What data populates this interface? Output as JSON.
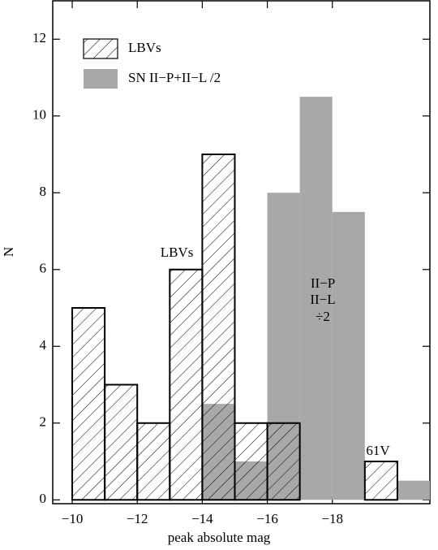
{
  "chart_data": {
    "type": "histogram",
    "xlabel": "peak absolute mag",
    "ylabel": "N",
    "xlim": [
      -9.4,
      -21
    ],
    "ylim": [
      -0.1,
      13
    ],
    "xticks": [
      {
        "value": -10,
        "label": "−10"
      },
      {
        "value": -12,
        "label": "−12"
      },
      {
        "value": -14,
        "label": "−14"
      },
      {
        "value": -16,
        "label": "−16"
      },
      {
        "value": -18,
        "label": "−18"
      }
    ],
    "yticks": [
      0,
      2,
      4,
      6,
      8,
      10,
      12
    ],
    "legend": "upper left",
    "series": [
      {
        "name": "SN II−P+II−L /2",
        "color": "#a8a8a8",
        "fill": "solid",
        "bins": [
          -14,
          -15,
          -16,
          -17,
          -18,
          -19,
          -20,
          -21
        ],
        "values": [
          2.5,
          1,
          8,
          10.5,
          7.5,
          0,
          0.5
        ]
      },
      {
        "name": "LBVs",
        "color": "#000000",
        "fill": "hatch",
        "bins": [
          -10,
          -11,
          -12,
          -13,
          -14,
          -15,
          -16,
          -17,
          -18,
          -19,
          -20
        ],
        "values": [
          5,
          3,
          2,
          6,
          9,
          2,
          2,
          0,
          0,
          1
        ]
      }
    ],
    "annotations": [
      "LBVs",
      "II−P",
      "II−L",
      "÷2",
      "61V"
    ]
  }
}
